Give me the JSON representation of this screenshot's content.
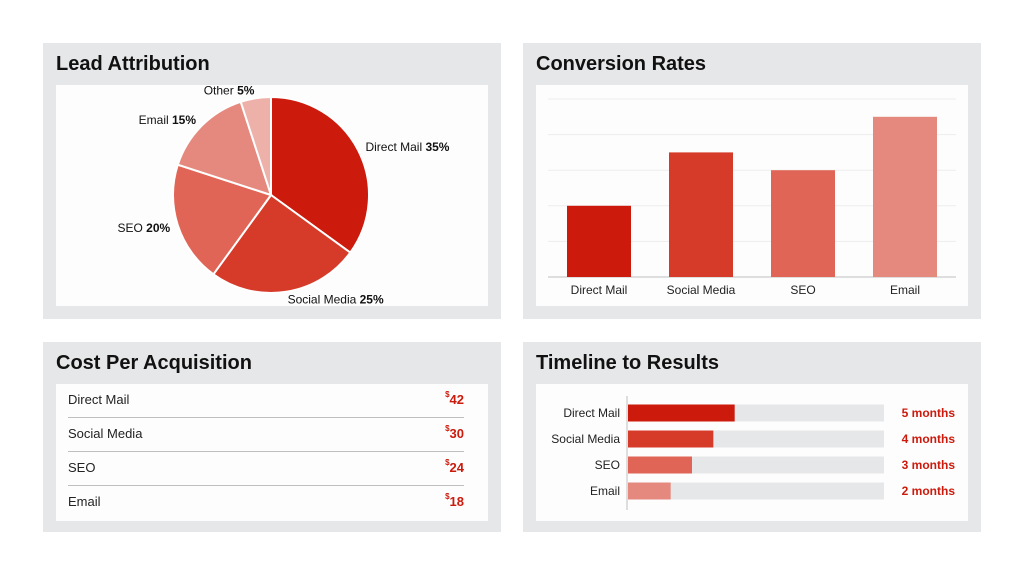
{
  "cards": {
    "lead_attribution": {
      "title": "Lead Attribution"
    },
    "conversion_rates": {
      "title": "Conversion Rates"
    },
    "cost_per_acquisition": {
      "title": "Cost Per Acquisition"
    },
    "timeline": {
      "title": "Timeline to Results"
    }
  },
  "colors": {
    "direct_mail": "#cc1a0c",
    "social_media": "#d63b2a",
    "seo": "#e06556",
    "email": "#e5897e",
    "other": "#eeb1aa",
    "track": "#e6e7e8",
    "accent_text": "#cc1a0c"
  },
  "chart_data": [
    {
      "type": "pie",
      "title": "Lead Attribution",
      "slices": [
        {
          "label": "Direct Mail",
          "value": 35,
          "display": "35%"
        },
        {
          "label": "Social Media",
          "value": 25,
          "display": "25%"
        },
        {
          "label": "SEO",
          "value": 20,
          "display": "20%"
        },
        {
          "label": "Email",
          "value": 15,
          "display": "15%"
        },
        {
          "label": "Other",
          "value": 5,
          "display": "5%"
        }
      ]
    },
    {
      "type": "bar",
      "title": "Conversion Rates",
      "categories": [
        "Direct Mail",
        "Social Media",
        "SEO",
        "Email"
      ],
      "values": [
        2,
        3.5,
        3,
        4.5
      ],
      "ylim": [
        0,
        5
      ],
      "grid": true
    },
    {
      "type": "table",
      "title": "Cost Per Acquisition",
      "rows": [
        {
          "label": "Direct Mail",
          "currency": "$",
          "value": "42"
        },
        {
          "label": "Social Media",
          "currency": "$",
          "value": "30"
        },
        {
          "label": "SEO",
          "currency": "$",
          "value": "24"
        },
        {
          "label": "Email",
          "currency": "$",
          "value": "18"
        }
      ]
    },
    {
      "type": "bar",
      "orientation": "horizontal",
      "title": "Timeline to Results",
      "categories": [
        "Direct Mail",
        "Social Media",
        "SEO",
        "Email"
      ],
      "values": [
        5,
        4,
        3,
        2
      ],
      "value_labels": [
        "5 months",
        "4 months",
        "3 months",
        "2 months"
      ],
      "xlim": [
        0,
        12
      ]
    }
  ]
}
